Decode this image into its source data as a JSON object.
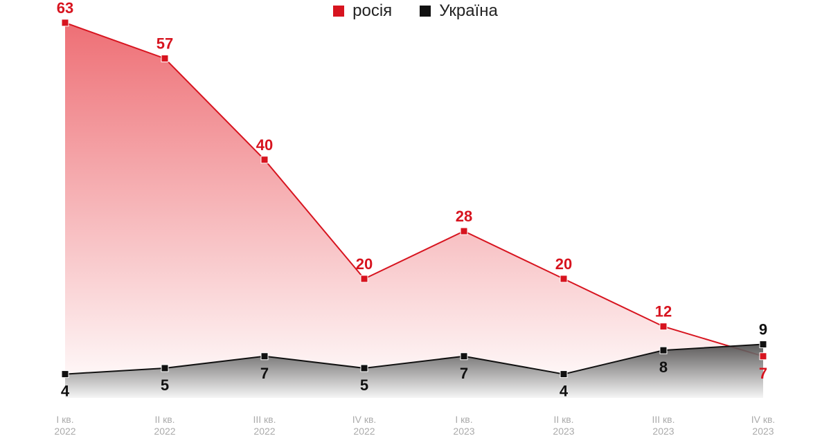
{
  "chart_data": {
    "type": "area",
    "categories": [
      "I кв. 2022",
      "II кв. 2022",
      "III кв. 2022",
      "IV кв. 2022",
      "I кв. 2023",
      "II кв. 2023",
      "III кв. 2023",
      "IV кв. 2023"
    ],
    "series": [
      {
        "name": "росія",
        "color": "#d7141f",
        "values": [
          63,
          57,
          40,
          20,
          28,
          20,
          12,
          7
        ]
      },
      {
        "name": "Україна",
        "color": "#111111",
        "values": [
          4,
          5,
          7,
          5,
          7,
          4,
          8,
          9
        ]
      }
    ],
    "ylim": [
      0,
      66
    ],
    "legend": "top"
  }
}
